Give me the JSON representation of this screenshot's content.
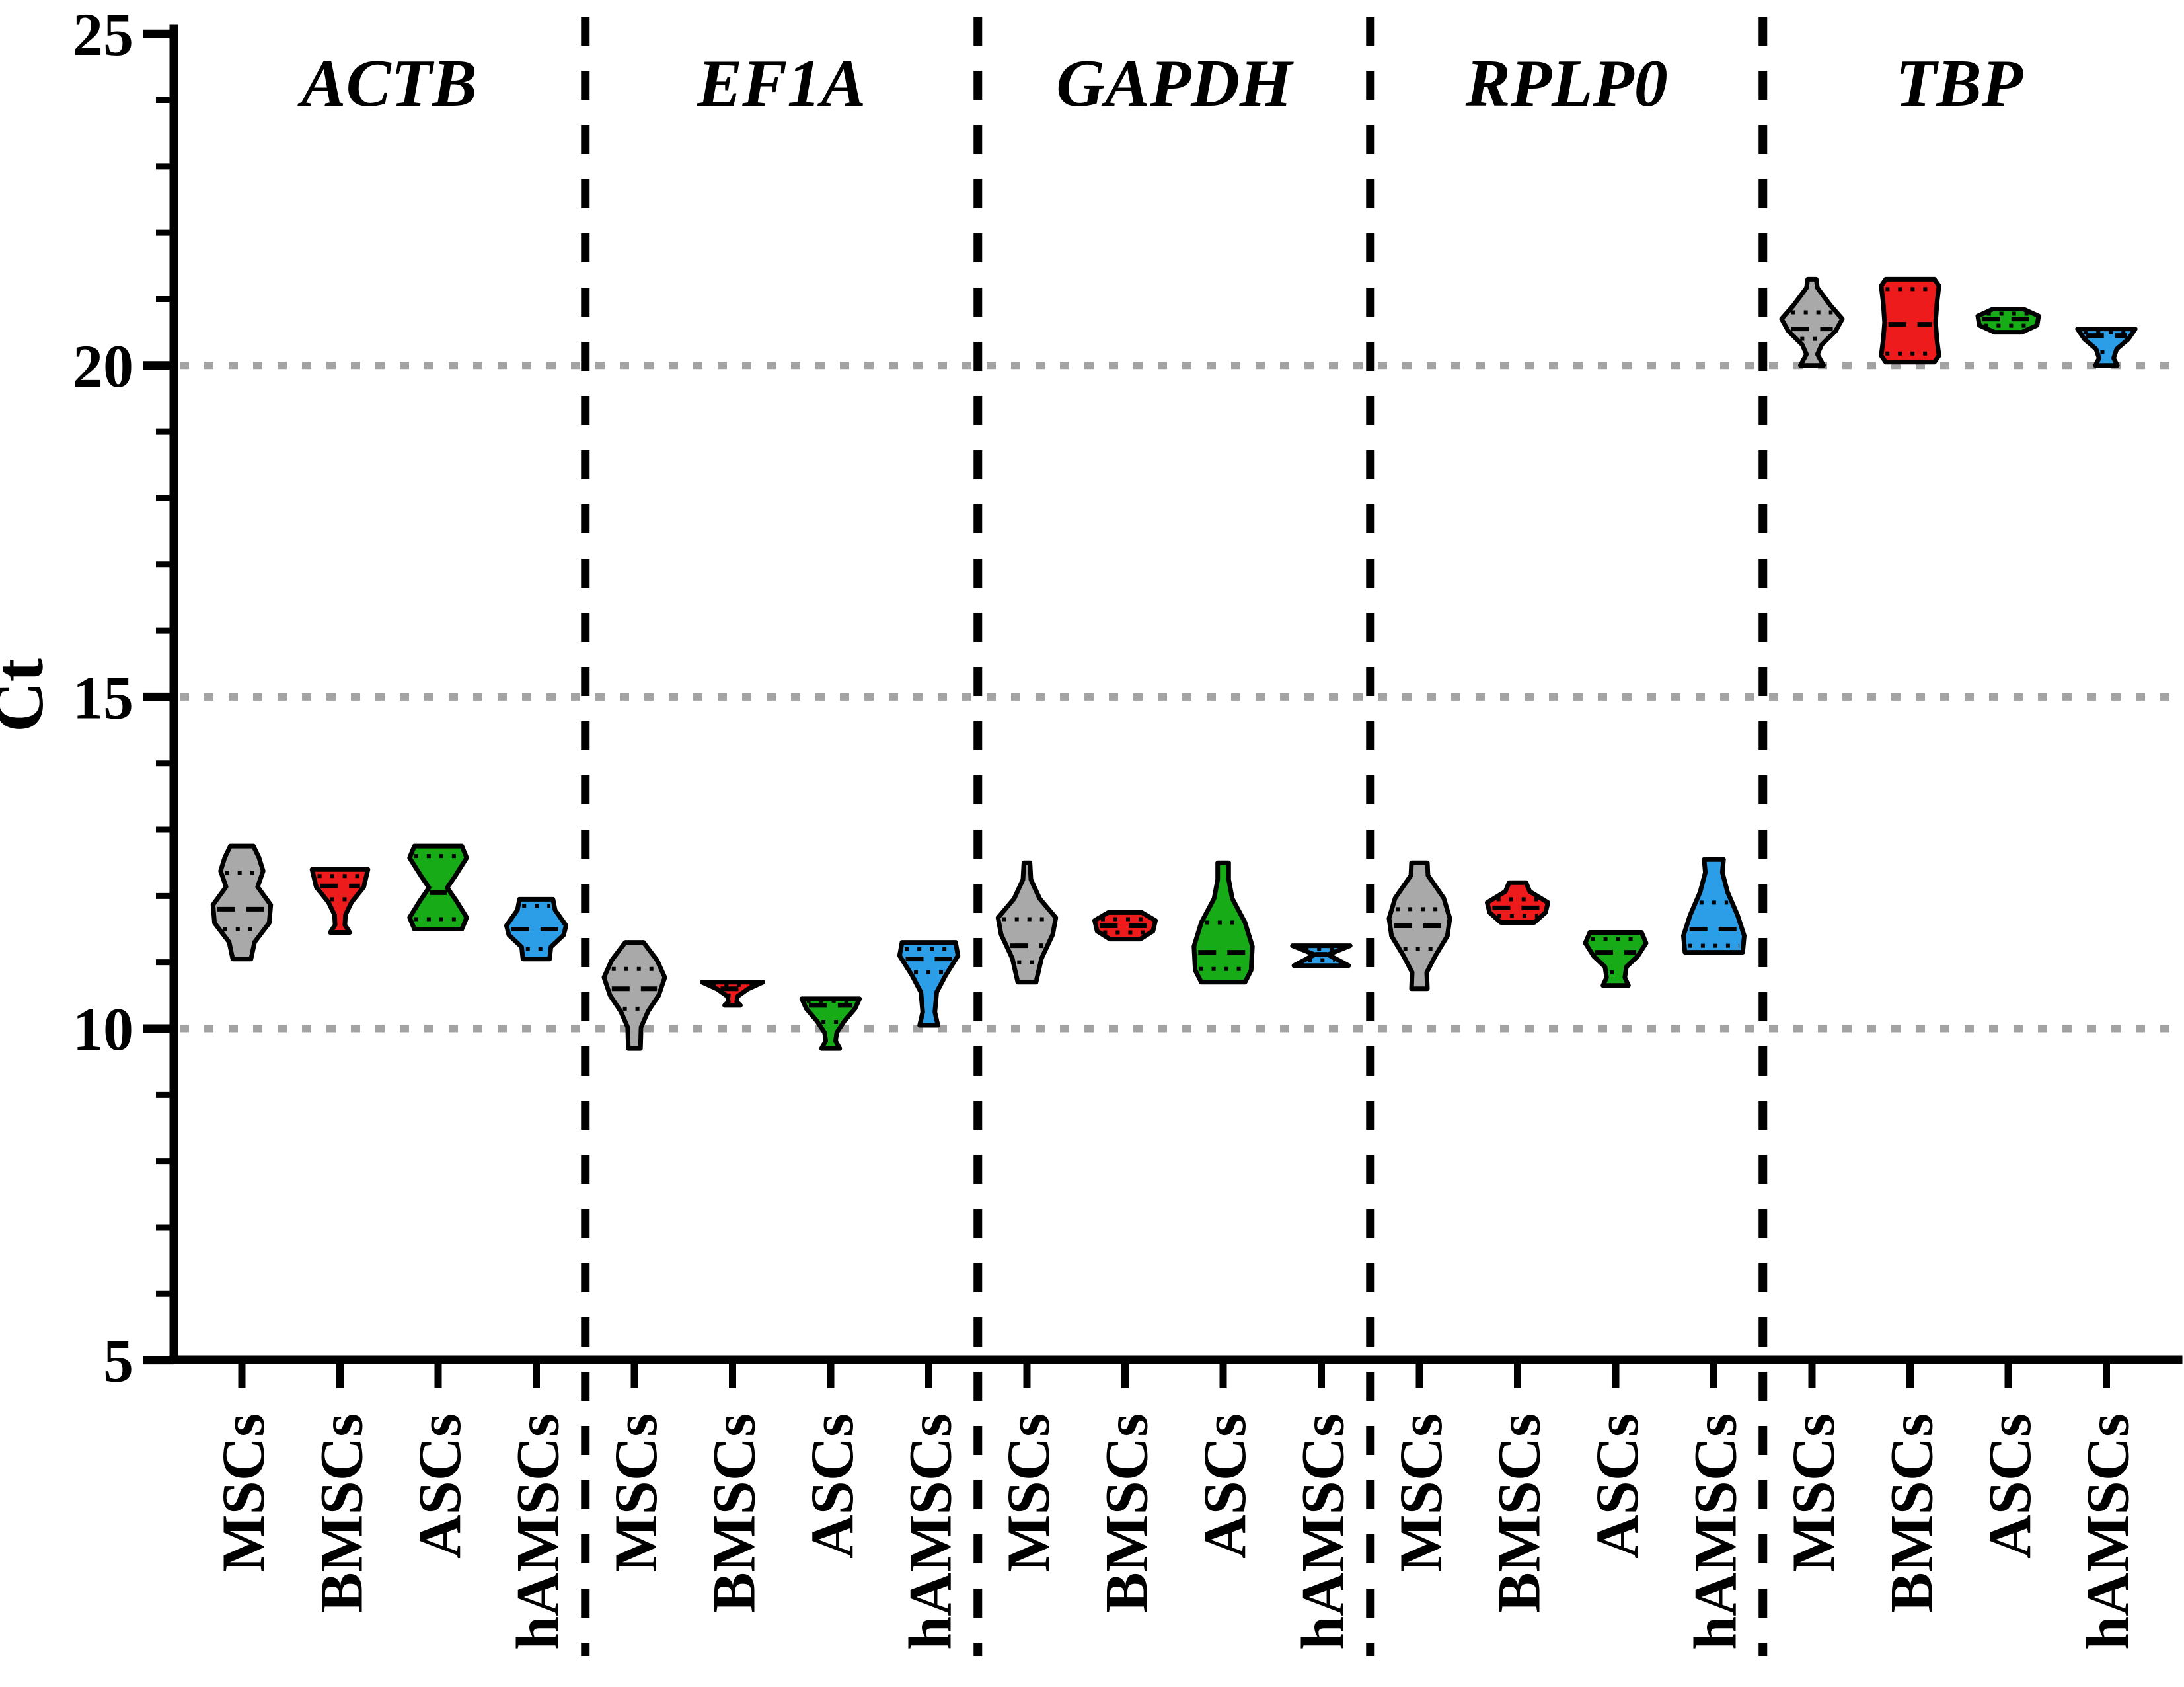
{
  "chart_data": {
    "type": "violin",
    "title": "",
    "ylabel": "Ct",
    "ylim": [
      5,
      25
    ],
    "y_ticks": [
      25,
      20,
      15,
      10,
      5
    ],
    "y_minor_tick_step": 1,
    "y_gridlines": [
      20,
      15,
      10
    ],
    "grid": "dotted horizontal lines at major ticks",
    "legend_position": "none",
    "group_separator_style": "vertical dashed black lines",
    "cell_types": [
      "MSCs",
      "BMSCs",
      "ASCs",
      "hAMSCs"
    ],
    "colors": {
      "MSCs": "#a9a9a9",
      "BMSCs": "#ed1b1b",
      "ASCs": "#17ac17",
      "hAMSCs": "#2c9ee8",
      "outline": "#000000"
    },
    "groups": [
      {
        "gene": "ACTB",
        "violins": [
          {
            "cell_type": "MSCs",
            "color": "#a9a9a9",
            "min": 11.05,
            "q1": 11.5,
            "median": 11.8,
            "q3": 12.35,
            "max": 12.75,
            "profile": [
              [
                0,
                0.38
              ],
              [
                0.1,
                0.56
              ],
              [
                0.22,
                0.7
              ],
              [
                0.36,
                0.52
              ],
              [
                0.52,
                0.95
              ],
              [
                0.68,
                0.9
              ],
              [
                0.85,
                0.42
              ],
              [
                1,
                0.3
              ]
            ]
          },
          {
            "cell_type": "BMSCs",
            "color": "#ed1b1b",
            "min": 11.45,
            "q1": 11.95,
            "median": 12.15,
            "q3": 12.3,
            "max": 12.4,
            "profile": [
              [
                0,
                0.92
              ],
              [
                0.28,
                0.78
              ],
              [
                0.52,
                0.38
              ],
              [
                0.72,
                0.18
              ],
              [
                0.88,
                0.16
              ],
              [
                1,
                0.32
              ]
            ]
          },
          {
            "cell_type": "ASCs",
            "color": "#17ac17",
            "min": 11.5,
            "q1": 11.65,
            "median": 12.05,
            "q3": 12.6,
            "max": 12.75,
            "profile": [
              [
                0,
                0.78
              ],
              [
                0.14,
                0.94
              ],
              [
                0.36,
                0.56
              ],
              [
                0.5,
                0.3
              ],
              [
                0.66,
                0.6
              ],
              [
                0.86,
                0.94
              ],
              [
                1,
                0.78
              ]
            ]
          },
          {
            "cell_type": "hAMSCs",
            "color": "#2c9ee8",
            "min": 11.05,
            "q1": 11.2,
            "median": 11.5,
            "q3": 11.85,
            "max": 11.95,
            "profile": [
              [
                0,
                0.55
              ],
              [
                0.18,
                0.62
              ],
              [
                0.44,
                0.98
              ],
              [
                0.6,
                0.9
              ],
              [
                0.8,
                0.48
              ],
              [
                1,
                0.44
              ]
            ]
          }
        ]
      },
      {
        "gene": "EF1A",
        "violins": [
          {
            "cell_type": "MSCs",
            "color": "#a9a9a9",
            "min": 9.7,
            "q1": 10.3,
            "median": 10.6,
            "q3": 10.9,
            "max": 11.3,
            "profile": [
              [
                0,
                0.3
              ],
              [
                0.17,
                0.75
              ],
              [
                0.33,
                1.0
              ],
              [
                0.5,
                0.8
              ],
              [
                0.65,
                0.45
              ],
              [
                0.8,
                0.22
              ],
              [
                1,
                0.2
              ]
            ]
          },
          {
            "cell_type": "BMSCs",
            "color": "#ed1b1b",
            "min": 10.35,
            "q1": 10.5,
            "median": 10.6,
            "q3": 10.66,
            "max": 10.7,
            "profile": [
              [
                0,
                1.0
              ],
              [
                0.3,
                0.5
              ],
              [
                0.62,
                0.16
              ],
              [
                0.85,
                0.14
              ],
              [
                1,
                0.26
              ]
            ]
          },
          {
            "cell_type": "ASCs",
            "color": "#17ac17",
            "min": 9.7,
            "q1": 10.1,
            "median": 10.35,
            "q3": 10.42,
            "max": 10.45,
            "profile": [
              [
                0,
                0.95
              ],
              [
                0.2,
                0.8
              ],
              [
                0.45,
                0.45
              ],
              [
                0.68,
                0.2
              ],
              [
                0.85,
                0.16
              ],
              [
                1,
                0.3
              ]
            ]
          },
          {
            "cell_type": "hAMSCs",
            "color": "#2c9ee8",
            "min": 10.05,
            "q1": 10.85,
            "median": 11.05,
            "q3": 11.2,
            "max": 11.3,
            "profile": [
              [
                0,
                0.88
              ],
              [
                0.16,
                0.96
              ],
              [
                0.4,
                0.55
              ],
              [
                0.6,
                0.26
              ],
              [
                0.84,
                0.2
              ],
              [
                1,
                0.3
              ]
            ]
          }
        ]
      },
      {
        "gene": "GAPDH",
        "violins": [
          {
            "cell_type": "MSCs",
            "color": "#a9a9a9",
            "min": 10.7,
            "q1": 11.0,
            "median": 11.25,
            "q3": 11.65,
            "max": 12.5,
            "profile": [
              [
                0,
                0.1
              ],
              [
                0.14,
                0.13
              ],
              [
                0.3,
                0.42
              ],
              [
                0.46,
                0.95
              ],
              [
                0.6,
                0.85
              ],
              [
                0.8,
                0.48
              ],
              [
                1,
                0.3
              ]
            ]
          },
          {
            "cell_type": "BMSCs",
            "color": "#ed1b1b",
            "min": 11.35,
            "q1": 11.45,
            "median": 11.55,
            "q3": 11.65,
            "max": 11.75,
            "profile": [
              [
                0,
                0.55
              ],
              [
                0.3,
                1.0
              ],
              [
                0.7,
                0.92
              ],
              [
                1,
                0.5
              ]
            ]
          },
          {
            "cell_type": "ASCs",
            "color": "#17ac17",
            "min": 10.7,
            "q1": 10.9,
            "median": 11.15,
            "q3": 11.6,
            "max": 12.5,
            "profile": [
              [
                0,
                0.18
              ],
              [
                0.14,
                0.18
              ],
              [
                0.3,
                0.3
              ],
              [
                0.5,
                0.72
              ],
              [
                0.7,
                0.96
              ],
              [
                0.9,
                0.92
              ],
              [
                1,
                0.72
              ]
            ]
          },
          {
            "cell_type": "hAMSCs",
            "color": "#2c9ee8",
            "min": 10.95,
            "q1": 11.03,
            "median": 11.12,
            "q3": 11.2,
            "max": 11.25,
            "profile": [
              [
                0,
                0.95
              ],
              [
                0.45,
                0.22
              ],
              [
                1,
                0.9
              ]
            ]
          }
        ]
      },
      {
        "gene": "RPLP0",
        "violins": [
          {
            "cell_type": "MSCs",
            "color": "#a9a9a9",
            "min": 10.6,
            "q1": 11.2,
            "median": 11.55,
            "q3": 11.8,
            "max": 12.5,
            "profile": [
              [
                0,
                0.26
              ],
              [
                0.1,
                0.28
              ],
              [
                0.28,
                0.8
              ],
              [
                0.44,
                1.0
              ],
              [
                0.58,
                0.92
              ],
              [
                0.74,
                0.52
              ],
              [
                0.87,
                0.24
              ],
              [
                1,
                0.26
              ]
            ]
          },
          {
            "cell_type": "BMSCs",
            "color": "#ed1b1b",
            "min": 11.6,
            "q1": 11.7,
            "median": 11.82,
            "q3": 11.95,
            "max": 12.2,
            "profile": [
              [
                0,
                0.28
              ],
              [
                0.22,
                0.4
              ],
              [
                0.5,
                1.0
              ],
              [
                0.75,
                0.92
              ],
              [
                1,
                0.55
              ]
            ]
          },
          {
            "cell_type": "ASCs",
            "color": "#17ac17",
            "min": 10.65,
            "q1": 10.85,
            "median": 11.15,
            "q3": 11.35,
            "max": 11.45,
            "profile": [
              [
                0,
                0.85
              ],
              [
                0.2,
                1.0
              ],
              [
                0.45,
                0.72
              ],
              [
                0.65,
                0.35
              ],
              [
                0.85,
                0.3
              ],
              [
                1,
                0.42
              ]
            ]
          },
          {
            "cell_type": "hAMSCs",
            "color": "#2c9ee8",
            "min": 11.15,
            "q1": 11.25,
            "median": 11.5,
            "q3": 11.9,
            "max": 12.55,
            "profile": [
              [
                0,
                0.32
              ],
              [
                0.14,
                0.28
              ],
              [
                0.35,
                0.45
              ],
              [
                0.6,
                0.78
              ],
              [
                0.82,
                1.0
              ],
              [
                1,
                0.95
              ]
            ]
          }
        ]
      },
      {
        "gene": "TBP",
        "violins": [
          {
            "cell_type": "MSCs",
            "color": "#a9a9a9",
            "min": 20.0,
            "q1": 20.4,
            "median": 20.55,
            "q3": 20.8,
            "max": 21.3,
            "profile": [
              [
                0,
                0.14
              ],
              [
                0.1,
                0.18
              ],
              [
                0.3,
                0.6
              ],
              [
                0.46,
                1.0
              ],
              [
                0.6,
                0.78
              ],
              [
                0.76,
                0.32
              ],
              [
                0.87,
                0.18
              ],
              [
                1,
                0.38
              ]
            ]
          },
          {
            "cell_type": "BMSCs",
            "color": "#ed1b1b",
            "min": 20.05,
            "q1": 20.18,
            "median": 20.62,
            "q3": 21.15,
            "max": 21.3,
            "profile": [
              [
                0,
                0.8
              ],
              [
                0.08,
                0.95
              ],
              [
                0.3,
                0.88
              ],
              [
                0.52,
                0.84
              ],
              [
                0.72,
                0.88
              ],
              [
                0.92,
                0.95
              ],
              [
                1,
                0.8
              ]
            ]
          },
          {
            "cell_type": "ASCs",
            "color": "#17ac17",
            "min": 20.5,
            "q1": 20.6,
            "median": 20.7,
            "q3": 20.78,
            "max": 20.85,
            "profile": [
              [
                0,
                0.5
              ],
              [
                0.3,
                1.0
              ],
              [
                0.7,
                0.95
              ],
              [
                1,
                0.45
              ]
            ]
          },
          {
            "cell_type": "hAMSCs",
            "color": "#2c9ee8",
            "min": 20.0,
            "q1": 20.2,
            "median": 20.45,
            "q3": 20.5,
            "max": 20.55,
            "profile": [
              [
                0,
                0.95
              ],
              [
                0.28,
                0.72
              ],
              [
                0.55,
                0.34
              ],
              [
                0.8,
                0.24
              ],
              [
                1,
                0.36
              ]
            ]
          }
        ]
      }
    ]
  }
}
